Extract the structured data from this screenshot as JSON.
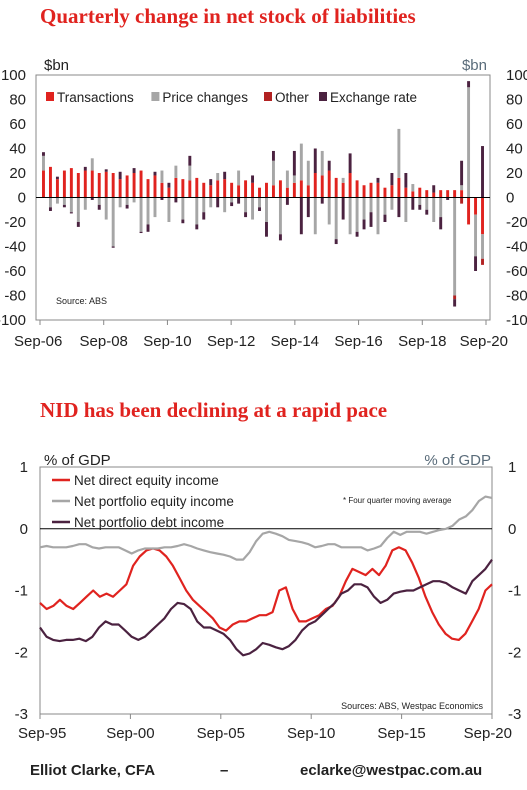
{
  "chart_data": [
    {
      "type": "bar",
      "title": "Quarterly change in net stock of liabilities",
      "unit_left": "$bn",
      "unit_right": "$bn",
      "source": "Source: ABS",
      "ylim": [
        -100,
        100
      ],
      "yticks": [
        100,
        80,
        60,
        40,
        20,
        0,
        -20,
        -40,
        -60,
        -80,
        -100
      ],
      "xtick_labels": [
        "Sep-06",
        "Sep-08",
        "Sep-10",
        "Sep-12",
        "Sep-14",
        "Sep-16",
        "Sep-18",
        "Sep-20"
      ],
      "legend": [
        "Transactions",
        "Price changes",
        "Other",
        "Exchange rate"
      ],
      "colors": {
        "Transactions": "#e0231f",
        "Price changes": "#a6a6a6",
        "Other": "#b22222",
        "Exchange rate": "#4b2240"
      },
      "start_period": "Sep-06",
      "end_period": "Sep-20",
      "series": [
        {
          "name": "Transactions",
          "values": [
            22,
            25,
            15,
            22,
            24,
            20,
            22,
            22,
            20,
            21,
            20,
            15,
            18,
            20,
            22,
            15,
            18,
            12,
            8,
            16,
            15,
            14,
            16,
            12,
            10,
            14,
            15,
            12,
            10,
            14,
            12,
            8,
            12,
            10,
            14,
            8,
            12,
            14,
            10,
            20,
            18,
            22,
            16,
            12,
            20,
            14,
            10,
            12,
            12,
            8,
            10,
            16,
            8,
            5,
            8,
            6,
            4,
            6,
            6,
            6,
            6,
            -22,
            -14,
            -30
          ]
        },
        {
          "name": "Price changes",
          "values": [
            12,
            -8,
            -5,
            -6,
            -12,
            -20,
            -10,
            10,
            -6,
            -18,
            -40,
            -8,
            -6,
            -4,
            -28,
            -22,
            -16,
            10,
            -20,
            10,
            -18,
            12,
            -22,
            -12,
            -8,
            6,
            -12,
            -4,
            12,
            -12,
            -18,
            -8,
            -20,
            20,
            -30,
            14,
            6,
            30,
            20,
            -30,
            20,
            -22,
            -34,
            4,
            -30,
            -28,
            -18,
            -12,
            -30,
            -14,
            -10,
            40,
            -20,
            6,
            -6,
            -10,
            -20,
            -16,
            0,
            -80,
            4,
            90,
            -34,
            -20
          ]
        },
        {
          "name": "Other",
          "values": [
            0,
            0,
            0,
            0,
            0,
            0,
            0,
            0,
            0,
            0,
            0,
            0,
            0,
            0,
            0,
            0,
            0,
            0,
            0,
            0,
            0,
            0,
            0,
            0,
            0,
            0,
            0,
            0,
            0,
            0,
            0,
            0,
            0,
            0,
            0,
            0,
            0,
            0,
            0,
            0,
            0,
            0,
            0,
            0,
            0,
            0,
            0,
            0,
            0,
            0,
            0,
            0,
            0,
            0,
            0,
            0,
            0,
            0,
            0,
            -3,
            -5,
            0,
            0,
            -5
          ]
        },
        {
          "name": "Exchange rate",
          "values": [
            3,
            -3,
            2,
            -2,
            -1,
            -4,
            3,
            -2,
            -4,
            2,
            -1,
            6,
            -3,
            4,
            -1,
            -6,
            3,
            -2,
            4,
            -4,
            -3,
            8,
            -4,
            -6,
            5,
            -8,
            6,
            -3,
            -5,
            -4,
            6,
            -3,
            -12,
            8,
            -5,
            -6,
            20,
            -30,
            -16,
            20,
            -5,
            8,
            -4,
            -18,
            16,
            -4,
            -8,
            -12,
            4,
            -6,
            10,
            -16,
            12,
            -10,
            -4,
            -4,
            6,
            -10,
            -2,
            -6,
            20,
            5,
            -12,
            42
          ]
        }
      ]
    },
    {
      "type": "line",
      "title": "NID has been declining at a rapid pace",
      "unit_left": "% of GDP",
      "unit_right": "% of GDP",
      "note": "* Four quarter moving average",
      "source": "Sources: ABS, Westpac Economics",
      "ylim": [
        -3,
        1
      ],
      "yticks": [
        1,
        0,
        -1,
        -2,
        -3
      ],
      "xtick_labels": [
        "Sep-95",
        "Sep-00",
        "Sep-05",
        "Sep-10",
        "Sep-15",
        "Sep-20"
      ],
      "start_period": "Sep-95",
      "end_period": "Sep-20",
      "series": [
        {
          "name": "Net direct equity income",
          "color": "#e0231f",
          "values": [
            -1.2,
            -1.3,
            -1.25,
            -1.15,
            -1.25,
            -1.3,
            -1.2,
            -1.1,
            -1.0,
            -1.1,
            -1.05,
            -1.1,
            -1.0,
            -0.9,
            -0.6,
            -0.45,
            -0.35,
            -0.32,
            -0.35,
            -0.45,
            -0.6,
            -0.8,
            -1.0,
            -1.15,
            -1.25,
            -1.35,
            -1.45,
            -1.6,
            -1.65,
            -1.55,
            -1.5,
            -1.5,
            -1.45,
            -1.4,
            -1.4,
            -1.35,
            -1.0,
            -0.95,
            -1.3,
            -1.5,
            -1.5,
            -1.45,
            -1.4,
            -1.3,
            -1.25,
            -1.1,
            -0.85,
            -0.65,
            -0.7,
            -0.75,
            -0.65,
            -0.75,
            -0.6,
            -0.35,
            -0.3,
            -0.35,
            -0.55,
            -0.8,
            -1.1,
            -1.35,
            -1.55,
            -1.7,
            -1.78,
            -1.8,
            -1.7,
            -1.5,
            -1.3,
            -1.0,
            -0.9
          ]
        },
        {
          "name": "Net portfolio equity income",
          "color": "#a6a6a6",
          "values": [
            -0.3,
            -0.28,
            -0.3,
            -0.3,
            -0.3,
            -0.28,
            -0.25,
            -0.25,
            -0.3,
            -0.32,
            -0.3,
            -0.3,
            -0.3,
            -0.35,
            -0.4,
            -0.35,
            -0.32,
            -0.32,
            -0.32,
            -0.3,
            -0.3,
            -0.28,
            -0.25,
            -0.28,
            -0.32,
            -0.35,
            -0.38,
            -0.4,
            -0.42,
            -0.45,
            -0.5,
            -0.5,
            -0.38,
            -0.2,
            -0.08,
            -0.05,
            -0.08,
            -0.12,
            -0.18,
            -0.2,
            -0.22,
            -0.25,
            -0.3,
            -0.28,
            -0.25,
            -0.25,
            -0.3,
            -0.3,
            -0.3,
            -0.3,
            -0.35,
            -0.32,
            -0.28,
            -0.15,
            -0.05,
            -0.1,
            -0.05,
            -0.05,
            -0.05,
            -0.08,
            -0.05,
            -0.02,
            0.0,
            0.05,
            0.15,
            0.2,
            0.3,
            0.45,
            0.52,
            0.5
          ]
        },
        {
          "name": "Net portfolio debt income",
          "color": "#4b2240",
          "values": [
            -1.6,
            -1.75,
            -1.8,
            -1.82,
            -1.8,
            -1.8,
            -1.78,
            -1.82,
            -1.75,
            -1.6,
            -1.5,
            -1.55,
            -1.55,
            -1.65,
            -1.75,
            -1.8,
            -1.75,
            -1.65,
            -1.55,
            -1.45,
            -1.3,
            -1.2,
            -1.22,
            -1.3,
            -1.5,
            -1.6,
            -1.6,
            -1.65,
            -1.7,
            -1.8,
            -1.95,
            -2.05,
            -2.02,
            -1.95,
            -1.85,
            -1.88,
            -1.92,
            -1.95,
            -1.9,
            -1.8,
            -1.65,
            -1.55,
            -1.5,
            -1.4,
            -1.3,
            -1.2,
            -1.05,
            -1.0,
            -0.9,
            -0.9,
            -0.95,
            -1.1,
            -1.2,
            -1.15,
            -1.05,
            -1.02,
            -1.0,
            -1.0,
            -0.95,
            -0.9,
            -0.85,
            -0.85,
            -0.88,
            -0.95,
            -1.0,
            -1.05,
            -0.85,
            -0.75,
            -0.65,
            -0.5
          ]
        }
      ]
    }
  ],
  "footer": {
    "author": "Elliot Clarke, CFA",
    "separator": "–",
    "email": "eclarke@westpac.com.au"
  }
}
